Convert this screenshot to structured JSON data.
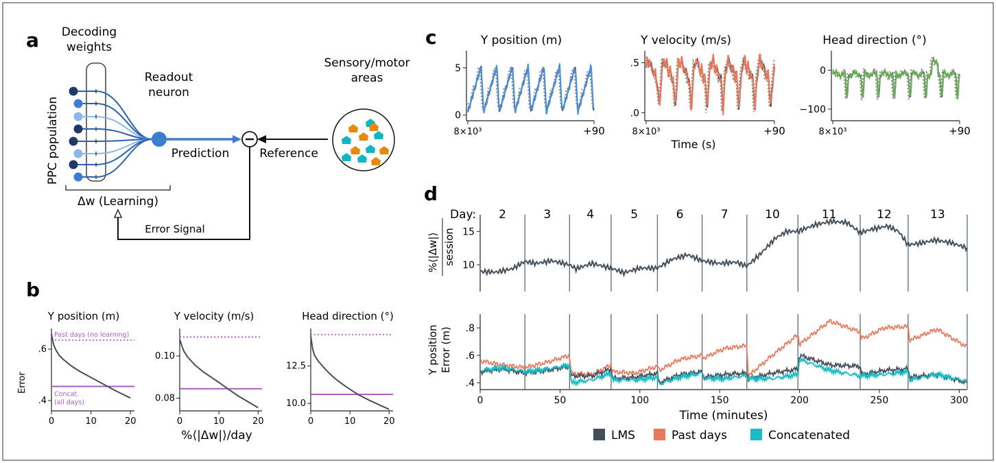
{
  "panels": {
    "a": {
      "letter": "a",
      "decoding_weights": [
        "Decoding",
        "weights"
      ],
      "readout_neuron": [
        "Readout",
        "neuron"
      ],
      "sensory_motor": [
        "Sensory/motor",
        "areas"
      ],
      "prediction": "Prediction",
      "reference": "Reference",
      "ppc_population": "PPC population",
      "learning": "Δw  (Learning)",
      "error_signal": "Error Signal",
      "minus": "−",
      "colors": {
        "dark_blue": "#1f3a66",
        "mid_blue": "#3c7dd2",
        "light_blue": "#8fb6e8",
        "orange": "#e8890c",
        "teal": "#12b5c3"
      }
    },
    "b": {
      "letter": "b",
      "xlabel": "%⟨|Δw|⟩/day",
      "ylabel": "Error",
      "past_label": "Past days (no learning)",
      "concat_label": [
        "Concat.",
        "(all days)"
      ]
    },
    "c": {
      "letter": "c",
      "xlabel": "Time (s)",
      "x_start": "8×10³",
      "x_end": "+90"
    },
    "d": {
      "letter": "d",
      "day_label": "Day:",
      "ylabel_top": "%⟨|Δw|⟩",
      "ylabel_top_den": "session",
      "ylabel_bottom": [
        "Y position",
        "Error (m)"
      ],
      "xlabel": "Time (minutes)"
    },
    "legend": [
      {
        "label": "LMS",
        "color": "#454f59"
      },
      {
        "label": "Past days",
        "color": "#e8795a"
      },
      {
        "label": "Concatenated",
        "color": "#17bcc6"
      }
    ]
  },
  "chart_data": [
    {
      "id": "b1",
      "type": "line",
      "title": "Y position (m)",
      "xlabel": "%⟨|Δw|⟩/day",
      "ylabel": "Error",
      "xlim": [
        0,
        21
      ],
      "ylim": [
        0.36,
        0.68
      ],
      "xticks": [
        0,
        10,
        20
      ],
      "yticks": [
        0.4,
        0.6
      ],
      "ytick_labels": [
        ".4",
        ".6"
      ],
      "past_days": 0.635,
      "concat": 0.455,
      "lms": {
        "x": [
          0,
          0.5,
          1,
          2,
          3,
          5,
          7,
          10,
          13,
          16,
          20
        ],
        "y": [
          0.66,
          0.62,
          0.6,
          0.575,
          0.56,
          0.535,
          0.515,
          0.49,
          0.465,
          0.44,
          0.41
        ]
      }
    },
    {
      "id": "b2",
      "type": "line",
      "title": "Y velocity (m/s)",
      "xlim": [
        0,
        21
      ],
      "ylim": [
        0.074,
        0.113
      ],
      "xticks": [
        0,
        10,
        20
      ],
      "yticks": [
        0.08,
        0.1
      ],
      "ytick_labels": [
        "0.08",
        "0.10"
      ],
      "past_days": 0.109,
      "concat": 0.0845,
      "lms": {
        "x": [
          0,
          0.5,
          1,
          2,
          4,
          6,
          8,
          10,
          12,
          15,
          20
        ],
        "y": [
          0.108,
          0.105,
          0.1025,
          0.0995,
          0.0955,
          0.0925,
          0.09,
          0.0875,
          0.0848,
          0.081,
          0.0755
        ]
      }
    },
    {
      "id": "b3",
      "type": "line",
      "title": "Head direction (°)",
      "xlim": [
        0,
        21
      ],
      "ylim": [
        9.5,
        15.0
      ],
      "xticks": [
        0,
        10,
        20
      ],
      "yticks": [
        10.0,
        12.5
      ],
      "ytick_labels": [
        "10.0",
        "12.5"
      ],
      "past_days": 14.6,
      "concat": 10.6,
      "lms": {
        "x": [
          0,
          0.5,
          1,
          2,
          4,
          6,
          8,
          10,
          12,
          15,
          20
        ],
        "y": [
          14.5,
          13.6,
          13.2,
          12.8,
          12.2,
          11.7,
          11.3,
          10.95,
          10.6,
          10.2,
          9.6
        ]
      }
    },
    {
      "id": "c1",
      "type": "line",
      "title": "Y position (m)",
      "ylim": [
        -0.6,
        6.8
      ],
      "yticks": [
        0,
        5
      ],
      "ytick_labels": [
        "0",
        "5"
      ],
      "color": "#4a90dc",
      "kind": "saw",
      "period": 11.2,
      "amp": 4.8
    },
    {
      "id": "c2",
      "type": "line",
      "title": "Y velocity (m/s)",
      "ylim": [
        -0.08,
        0.62
      ],
      "yticks": [
        0,
        0.5
      ],
      "ytick_labels": [
        ".0",
        ".5"
      ],
      "color": "#e8795a",
      "kind": "vel",
      "period": 11.2
    },
    {
      "id": "c3",
      "type": "line",
      "title": "Head direction (°)",
      "ylim": [
        -130,
        50
      ],
      "yticks": [
        -100,
        0
      ],
      "ytick_labels": [
        "−100",
        "0"
      ],
      "color": "#6bab58",
      "kind": "head",
      "period": 11.2
    },
    {
      "id": "d-top",
      "type": "line",
      "xlim": [
        0,
        305
      ],
      "ylim": [
        6,
        17.5
      ],
      "yticks": [
        10,
        15
      ],
      "days": [
        "2",
        "3",
        "4",
        "5",
        "6",
        "7",
        "10",
        "11",
        "12",
        "13"
      ],
      "boundaries": [
        28,
        56,
        82,
        111,
        139,
        167,
        199,
        238,
        268,
        305
      ],
      "lms": {
        "x": [
          0,
          10,
          20,
          28,
          35,
          45,
          56,
          60,
          70,
          82,
          90,
          100,
          111,
          120,
          130,
          139,
          150,
          160,
          167,
          175,
          185,
          192,
          199,
          210,
          220,
          230,
          238,
          245,
          255,
          262,
          268,
          275,
          285,
          295,
          305
        ],
        "y": [
          9,
          8.9,
          9.4,
          10.5,
          10.2,
          10.6,
          10.0,
          9.4,
          10.2,
          9.5,
          8.8,
          9.5,
          9.5,
          10.8,
          11.5,
          10.6,
          10.2,
          10.4,
          9.8,
          11.5,
          14.0,
          15.0,
          15.0,
          16.0,
          16.5,
          16.3,
          14.8,
          15.3,
          15.8,
          15.0,
          13.0,
          13.2,
          13.7,
          13.3,
          12.5
        ]
      }
    },
    {
      "id": "d-bottom",
      "type": "line",
      "xlabel": "Time (minutes)",
      "xlim": [
        0,
        305
      ],
      "ylim": [
        0.35,
        0.9
      ],
      "xticks": [
        0,
        50,
        100,
        150,
        200,
        250,
        300
      ],
      "yticks": [
        0.4,
        0.6,
        0.8
      ],
      "ytick_labels": [
        ".4",
        ".6",
        ".8"
      ],
      "series": [
        {
          "name": "Past days",
          "x": [
            0,
            14,
            28,
            42,
            56,
            57,
            70,
            82,
            83,
            97,
            111,
            112,
            125,
            139,
            140,
            153,
            167,
            168,
            183,
            199,
            200,
            219,
            238,
            239,
            253,
            268,
            269,
            286,
            305
          ],
          "y": [
            0.56,
            0.53,
            0.51,
            0.55,
            0.6,
            0.47,
            0.46,
            0.53,
            0.48,
            0.47,
            0.52,
            0.49,
            0.57,
            0.6,
            0.58,
            0.65,
            0.67,
            0.45,
            0.6,
            0.75,
            0.68,
            0.85,
            0.77,
            0.72,
            0.8,
            0.81,
            0.71,
            0.79,
            0.66
          ]
        },
        {
          "name": "LMS",
          "x": [
            0,
            14,
            28,
            42,
            56,
            57,
            70,
            82,
            83,
            97,
            111,
            112,
            125,
            139,
            140,
            153,
            167,
            168,
            183,
            199,
            200,
            219,
            238,
            239,
            253,
            268,
            269,
            286,
            305
          ],
          "y": [
            0.48,
            0.5,
            0.47,
            0.49,
            0.52,
            0.45,
            0.45,
            0.5,
            0.43,
            0.44,
            0.47,
            0.4,
            0.46,
            0.48,
            0.44,
            0.46,
            0.47,
            0.43,
            0.47,
            0.5,
            0.6,
            0.53,
            0.52,
            0.46,
            0.49,
            0.5,
            0.44,
            0.46,
            0.4
          ]
        },
        {
          "name": "Concatenated",
          "x": [
            0,
            14,
            28,
            42,
            56,
            57,
            70,
            82,
            83,
            97,
            111,
            112,
            125,
            139,
            140,
            153,
            167,
            168,
            183,
            199,
            200,
            219,
            238,
            239,
            253,
            268,
            269,
            286,
            305
          ],
          "y": [
            0.49,
            0.51,
            0.48,
            0.5,
            0.53,
            0.4,
            0.42,
            0.47,
            0.42,
            0.42,
            0.44,
            0.39,
            0.44,
            0.47,
            0.43,
            0.43,
            0.45,
            0.43,
            0.43,
            0.46,
            0.57,
            0.49,
            0.45,
            0.45,
            0.46,
            0.48,
            0.42,
            0.46,
            0.41
          ]
        }
      ]
    }
  ]
}
